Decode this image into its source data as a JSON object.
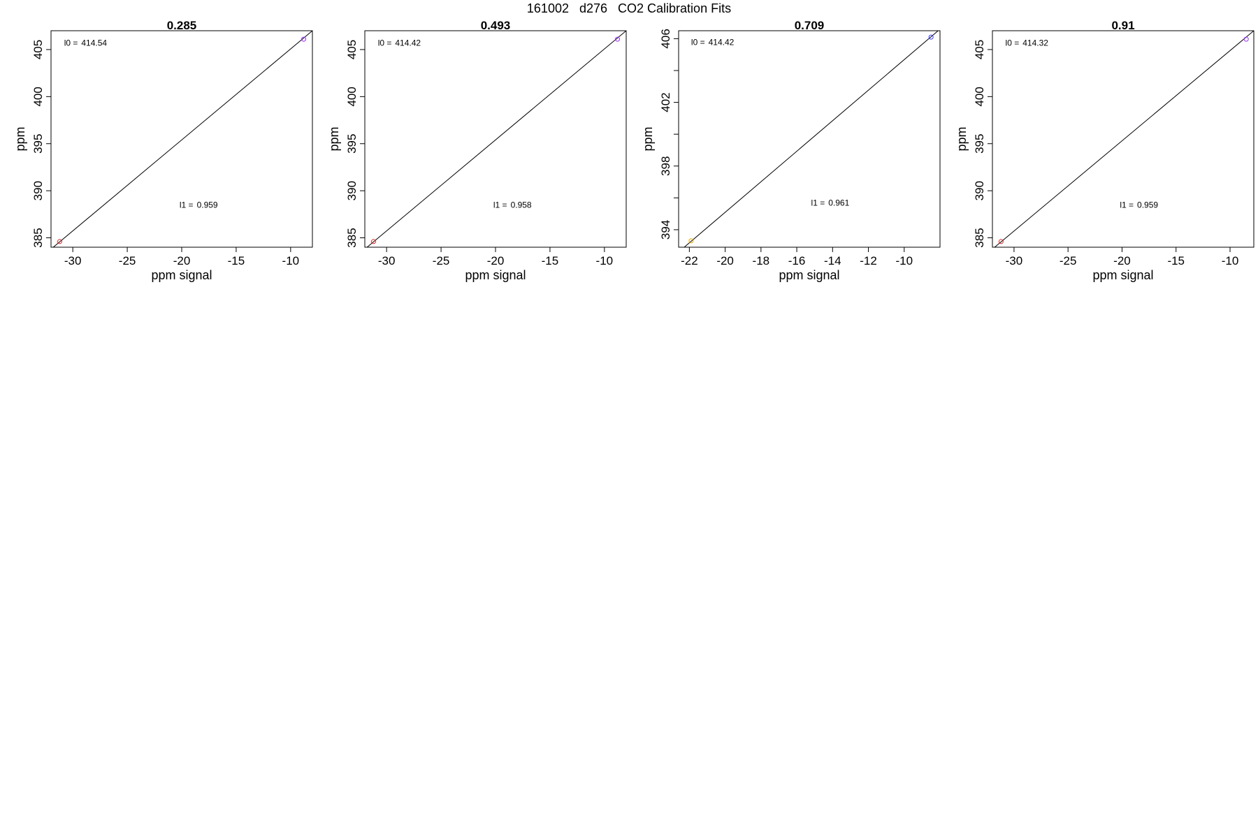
{
  "figure_title": "161002   d276   CO2 Calibration Fits",
  "colors": {
    "fit_line": "#000000",
    "low_point": "#d62728",
    "high_point": "#9b30ff",
    "low_point_alt": "#e6a800",
    "high_point_alt": "#3a3aff"
  },
  "chart_data": [
    {
      "type": "scatter",
      "title": "0.285",
      "xlabel": "ppm signal",
      "ylabel": "ppm",
      "xlim": [
        -32,
        -8
      ],
      "ylim": [
        384,
        407
      ],
      "xticks": [
        -30,
        -25,
        -20,
        -15,
        -10
      ],
      "yticks": [
        385,
        390,
        395,
        400,
        405
      ],
      "points": [
        {
          "x": -31.2,
          "y": 384.6,
          "color": "#d62728"
        },
        {
          "x": -8.8,
          "y": 406.1,
          "color": "#9b30ff"
        }
      ],
      "fit_line": {
        "x": [
          -32,
          -8
        ],
        "y": [
          383.8,
          407.0
        ]
      },
      "annotations": [
        {
          "label": "l0 =",
          "value": "414.54",
          "x": -30.8,
          "y": 405.4
        },
        {
          "label": "l1 =",
          "value": "0.959",
          "x": -20.2,
          "y": 388.2
        }
      ],
      "grid": false
    },
    {
      "type": "scatter",
      "title": "0.493",
      "xlabel": "ppm signal",
      "ylabel": "ppm",
      "xlim": [
        -32,
        -8
      ],
      "ylim": [
        384,
        407
      ],
      "xticks": [
        -30,
        -25,
        -20,
        -15,
        -10
      ],
      "yticks": [
        385,
        390,
        395,
        400,
        405
      ],
      "points": [
        {
          "x": -31.2,
          "y": 384.6,
          "color": "#d62728"
        },
        {
          "x": -8.8,
          "y": 406.1,
          "color": "#9b30ff"
        }
      ],
      "fit_line": {
        "x": [
          -32,
          -8
        ],
        "y": [
          383.8,
          407.0
        ]
      },
      "annotations": [
        {
          "label": "l0 =",
          "value": "414.42",
          "x": -30.8,
          "y": 405.4
        },
        {
          "label": "l1 =",
          "value": "0.958",
          "x": -20.2,
          "y": 388.2
        }
      ],
      "grid": false
    },
    {
      "type": "scatter",
      "title": "0.709",
      "xlabel": "ppm signal",
      "ylabel": "ppm",
      "xlim": [
        -22.6,
        -8.0
      ],
      "ylim": [
        392.9,
        406.5
      ],
      "xticks": [
        -22,
        -20,
        -18,
        -16,
        -14,
        -12,
        -10
      ],
      "yticks": [
        394,
        396,
        398,
        400,
        402,
        404,
        406
      ],
      "ytick_labels": [
        "394",
        "",
        "398",
        "",
        "402",
        "",
        "406"
      ],
      "points": [
        {
          "x": -21.9,
          "y": 393.3,
          "color": "#e6a800"
        },
        {
          "x": -8.5,
          "y": 406.1,
          "color": "#3a3aff"
        }
      ],
      "fit_line": {
        "x": [
          -22.6,
          -8.0
        ],
        "y": [
          392.6,
          406.6
        ]
      },
      "annotations": [
        {
          "label": "l0 =",
          "value": "414.42",
          "x": -21.9,
          "y": 405.6
        },
        {
          "label": "l1 =",
          "value": "0.961",
          "x": -15.2,
          "y": 395.5
        }
      ],
      "grid": false
    },
    {
      "type": "scatter",
      "title": "0.91",
      "xlabel": "ppm signal",
      "ylabel": "ppm",
      "xlim": [
        -32,
        -7.8
      ],
      "ylim": [
        384,
        407
      ],
      "xticks": [
        -30,
        -25,
        -20,
        -15,
        -10
      ],
      "yticks": [
        385,
        390,
        395,
        400,
        405
      ],
      "points": [
        {
          "x": -31.2,
          "y": 384.6,
          "color": "#d62728"
        },
        {
          "x": -8.5,
          "y": 406.1,
          "color": "#9b30ff"
        }
      ],
      "fit_line": {
        "x": [
          -32,
          -7.8
        ],
        "y": [
          383.8,
          407.0
        ]
      },
      "annotations": [
        {
          "label": "l0 =",
          "value": "414.32",
          "x": -30.8,
          "y": 405.4
        },
        {
          "label": "l1 =",
          "value": "0.959",
          "x": -20.2,
          "y": 388.2
        }
      ],
      "grid": false
    }
  ]
}
